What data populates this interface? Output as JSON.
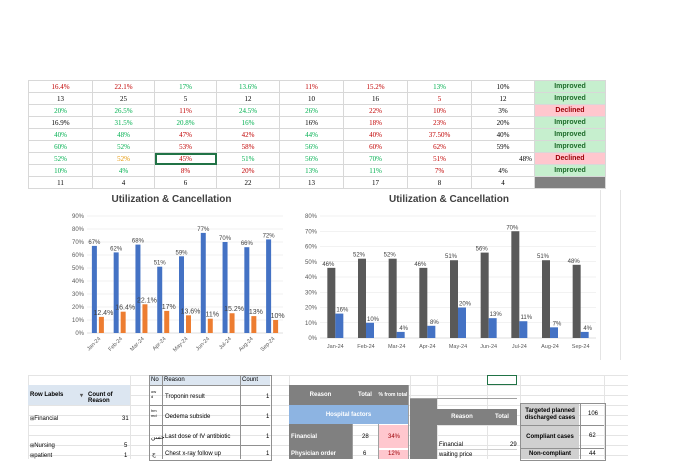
{
  "top_table": {
    "rows": [
      {
        "cells": [
          [
            "16.4%",
            "red"
          ],
          [
            "22.1%",
            "red"
          ],
          [
            "17%",
            "green"
          ],
          [
            "13.6%",
            "green"
          ],
          [
            "11%",
            "red"
          ],
          [
            "15.2%",
            "red"
          ],
          [
            "13%",
            "green"
          ],
          [
            "10%",
            "black"
          ]
        ],
        "status": "Improved",
        "status_type": "imp"
      },
      {
        "cells": [
          [
            "13",
            "black"
          ],
          [
            "25",
            "black"
          ],
          [
            "5",
            "black"
          ],
          [
            "12",
            "black"
          ],
          [
            "10",
            "black"
          ],
          [
            "16",
            "black"
          ],
          [
            "5",
            "red"
          ],
          [
            "12",
            "black"
          ]
        ],
        "status": "Improved",
        "status_type": "imp"
      },
      {
        "cells": [
          [
            "20%",
            "green"
          ],
          [
            "26.5%",
            "green"
          ],
          [
            "11%",
            "red"
          ],
          [
            "24.5%",
            "green"
          ],
          [
            "26%",
            "green"
          ],
          [
            "22%",
            "red"
          ],
          [
            "10%",
            "red"
          ],
          [
            "3%",
            "black"
          ]
        ],
        "status": "Declined",
        "status_type": "dec"
      },
      {
        "cells": [
          [
            "16.9%",
            "black"
          ],
          [
            "31.5%",
            "green"
          ],
          [
            "20.8%",
            "green"
          ],
          [
            "16%",
            "green"
          ],
          [
            "16%",
            "black"
          ],
          [
            "18%",
            "red"
          ],
          [
            "23%",
            "red"
          ],
          [
            "20%",
            "black"
          ]
        ],
        "status": "Improved",
        "status_type": "imp"
      },
      {
        "cells": [
          [
            "40%",
            "green"
          ],
          [
            "48%",
            "green"
          ],
          [
            "47%",
            "red"
          ],
          [
            "42%",
            "red"
          ],
          [
            "44%",
            "green"
          ],
          [
            "40%",
            "red"
          ],
          [
            "37.50%",
            "red"
          ],
          [
            "40%",
            "black"
          ]
        ],
        "status": "Improved",
        "status_type": "imp"
      },
      {
        "cells": [
          [
            "60%",
            "green"
          ],
          [
            "52%",
            "green"
          ],
          [
            "53%",
            "red"
          ],
          [
            "58%",
            "red"
          ],
          [
            "56%",
            "green"
          ],
          [
            "60%",
            "red"
          ],
          [
            "62%",
            "red"
          ],
          [
            "59%",
            "black"
          ]
        ],
        "status": "Improved",
        "status_type": "imp"
      },
      {
        "cells": [
          [
            "52%",
            "green"
          ],
          [
            "52%",
            "orange"
          ],
          [
            "45%",
            "red"
          ],
          [
            "51%",
            "green"
          ],
          [
            "56%",
            "green"
          ],
          [
            "70%",
            "green"
          ],
          [
            "51%",
            "red"
          ],
          [
            "48%",
            "black"
          ]
        ],
        "status": "Declined",
        "status_type": "dec"
      },
      {
        "cells": [
          [
            "10%",
            "green"
          ],
          [
            "4%",
            "green"
          ],
          [
            "8%",
            "red"
          ],
          [
            "20%",
            "red"
          ],
          [
            "13%",
            "green"
          ],
          [
            "11%",
            "green"
          ],
          [
            "7%",
            "red"
          ],
          [
            "4%",
            "black"
          ]
        ],
        "status": "Improved",
        "status_type": "imp"
      },
      {
        "cells": [
          [
            "11",
            "black"
          ],
          [
            "4",
            "black"
          ],
          [
            "6",
            "black"
          ],
          [
            "22",
            "black"
          ],
          [
            "13",
            "black"
          ],
          [
            "17",
            "black"
          ],
          [
            "8",
            "black"
          ],
          [
            "4",
            "black"
          ]
        ],
        "status": "",
        "status_type": "gray"
      }
    ]
  },
  "chart_data": [
    {
      "type": "bar",
      "title": "Utilization & Cancellation",
      "categories": [
        "Jan-24",
        "Feb-24",
        "Mar-24",
        "Apr-24",
        "May-24",
        "Jun-24",
        "Jul-24",
        "Aug-24",
        "Sep-24"
      ],
      "series": [
        {
          "values": [
            67,
            62,
            68,
            51,
            59,
            77,
            70,
            66,
            72
          ],
          "labels": [
            "67%",
            "62%",
            "68%",
            "51%",
            "59%",
            "77%",
            "70%",
            "66%",
            "72%"
          ],
          "color": "#4472c4"
        },
        {
          "values": [
            12.4,
            16.4,
            22.1,
            17,
            13.6,
            11,
            15.2,
            13,
            10
          ],
          "labels": [
            "12.4%",
            "16.4%",
            "22.1%",
            "17%",
            "13.6%",
            "11%",
            "15.2%",
            "13%",
            "10%"
          ],
          "color": "#ed7d31"
        }
      ],
      "yticks": [
        "0%",
        "10%",
        "20%",
        "30%",
        "40%",
        "50%",
        "60%",
        "70%",
        "80%",
        "90%"
      ],
      "ylim": [
        0,
        90
      ]
    },
    {
      "type": "bar",
      "title": "Utilization & Cancellation",
      "categories": [
        "Jan-24",
        "Feb-24",
        "Mar-24",
        "Apr-24",
        "May-24",
        "Jun-24",
        "Jul-24",
        "Aug-24",
        "Sep-24"
      ],
      "series": [
        {
          "values": [
            46,
            52,
            52,
            46,
            51,
            56,
            70,
            51,
            48
          ],
          "labels": [
            "46%",
            "52%",
            "52%",
            "46%",
            "51%",
            "56%",
            "70%",
            "51%",
            "48%"
          ],
          "color": "#595959"
        },
        {
          "values": [
            16,
            10,
            4,
            8,
            20,
            13,
            11,
            7,
            4
          ],
          "labels": [
            "16%",
            "10%",
            "4%",
            "8%",
            "20%",
            "13%",
            "11%",
            "7%",
            "4%"
          ],
          "color": "#4472c4"
        }
      ],
      "yticks": [
        "0%",
        "10%",
        "20%",
        "30%",
        "40%",
        "50%",
        "60%",
        "70%",
        "80%"
      ],
      "ylim": [
        0,
        80
      ]
    }
  ],
  "pivot": {
    "header_row_labels": "Row Labels",
    "header_count": "Count of Reason",
    "rows": [
      {
        "label": "Financial",
        "count": "31"
      },
      {
        "label": "Nursing",
        "count": "5"
      },
      {
        "label": "patient",
        "count": "1"
      }
    ]
  },
  "reason_table": {
    "headers": [
      "No",
      "Reason",
      "Count"
    ],
    "rows": [
      {
        "no": "ow\nd",
        "reason": "Troponin result",
        "count": "1"
      },
      {
        "no": "hm\nmd",
        "reason": "Oedema subside",
        "count": "1"
      },
      {
        "no": "حسن",
        "reason": "Last dose of IV antibiotic",
        "count": "1"
      },
      {
        "no": "ح",
        "reason": "Chest x-ray follow up",
        "count": "1"
      }
    ]
  },
  "hospital_table": {
    "col_reason": "Reason",
    "col_total": "Total",
    "col_pct": "% from total",
    "subheader": "Hospital factors",
    "rows": [
      {
        "reason": "Financial",
        "total": "28",
        "pct": "34%"
      },
      {
        "reason": "Physician order",
        "total": "6",
        "pct": "12%"
      }
    ]
  },
  "reason_total_table": {
    "col_reason": "Reason",
    "col_total": "Total",
    "rows": [
      {
        "reason": "Financial",
        "total": "29"
      },
      {
        "reason": "waiting price",
        "total": ""
      }
    ]
  },
  "summary_table": {
    "rows": [
      {
        "label": "Targeted planned discharged cases",
        "value": "106"
      },
      {
        "label": "Compliant cases",
        "value": "62"
      },
      {
        "label": "Non-compliant",
        "value": "44"
      }
    ]
  }
}
